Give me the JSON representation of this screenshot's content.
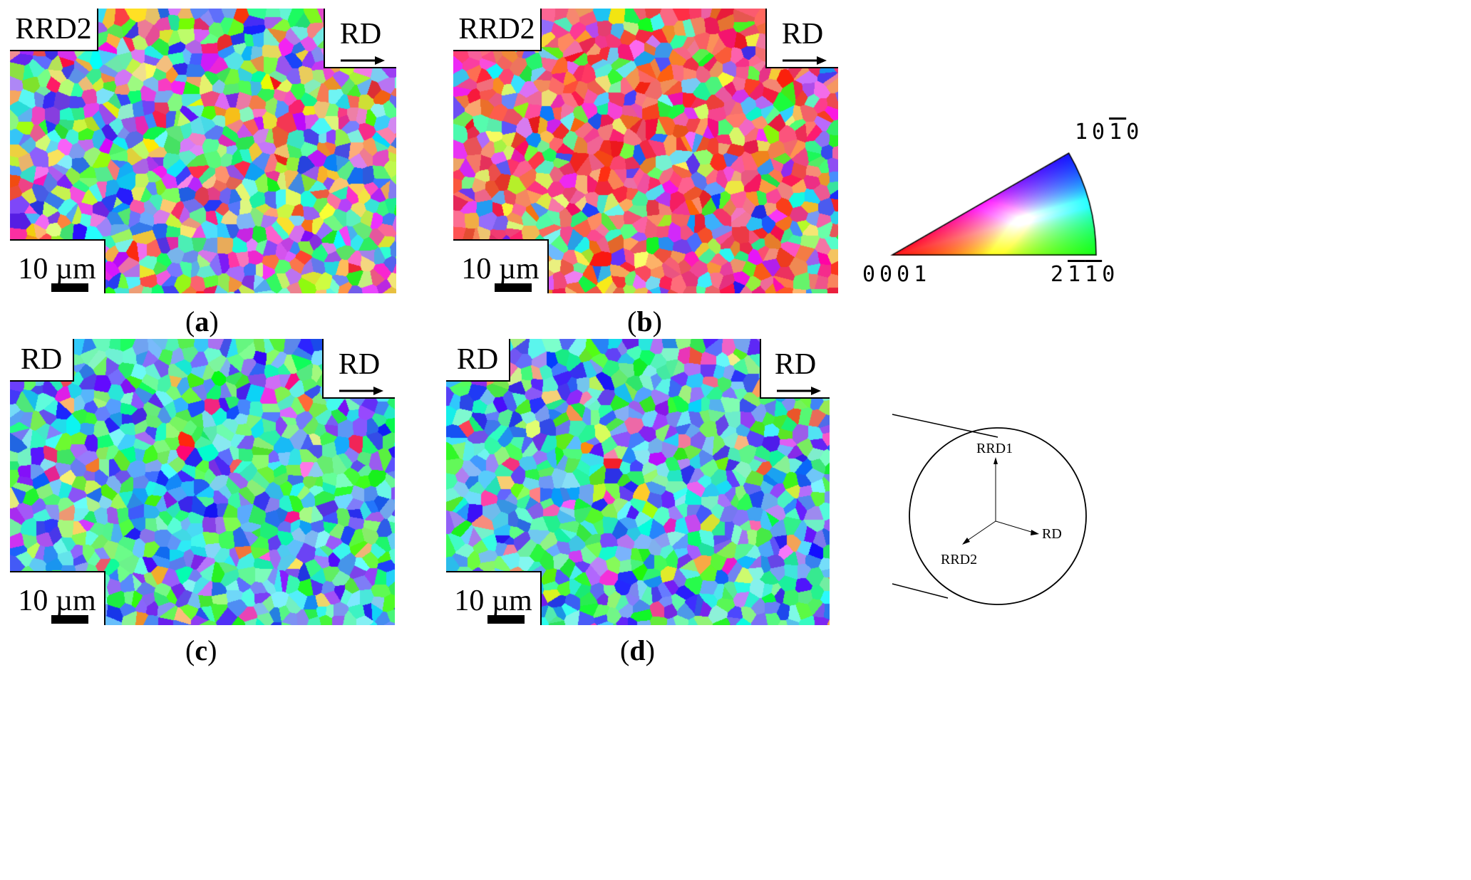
{
  "panels": [
    {
      "id": "a",
      "section_label": "RRD2",
      "direction_label": "RD",
      "scale_label": "10 µm",
      "caption_letter": "a",
      "palette": "red-mixed"
    },
    {
      "id": "b",
      "section_label": "RRD2",
      "direction_label": "RD",
      "scale_label": "10 µm",
      "caption_letter": "b",
      "palette": "red-rich"
    },
    {
      "id": "c",
      "section_label": "RD",
      "direction_label": "RD",
      "scale_label": "10 µm",
      "caption_letter": "c",
      "palette": "blue-green"
    },
    {
      "id": "d",
      "section_label": "RD",
      "direction_label": "RD",
      "scale_label": "10 µm",
      "caption_letter": "d",
      "palette": "blue-green"
    }
  ],
  "ipf_legend": {
    "top_digits": "10",
    "top_bar": "1",
    "top_last": "0",
    "left": "0001",
    "right_first": "2",
    "right_bar1": "1",
    "right_bar2": "1",
    "right_last": "0",
    "colors": {
      "0001": "#ff0000",
      "2-1-10": "#00ff00",
      "10-10": "#0000ff"
    }
  },
  "axes_diagram": {
    "axis_up": "RRD1",
    "axis_right": "RD",
    "axis_diag": "RRD2"
  }
}
